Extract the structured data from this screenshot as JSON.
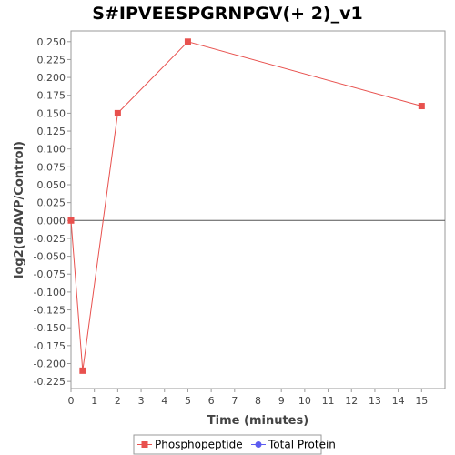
{
  "chart_data": {
    "type": "line",
    "title": "S#IPVEESPGRNPGV(+ 2)_v1",
    "xlabel": "Time (minutes)",
    "ylabel": "log2(dDAVP/Control)",
    "xlim": [
      0,
      16
    ],
    "ylim": [
      -0.235,
      0.265
    ],
    "x_ticks": [
      0,
      1,
      2,
      3,
      4,
      5,
      6,
      7,
      8,
      9,
      10,
      11,
      12,
      13,
      14,
      15
    ],
    "y_ticks": [
      0.25,
      0.225,
      0.2,
      0.175,
      0.15,
      0.125,
      0.1,
      0.075,
      0.05,
      0.025,
      0.0,
      -0.025,
      -0.05,
      -0.075,
      -0.1,
      -0.125,
      -0.15,
      -0.175,
      -0.2,
      -0.225
    ],
    "y_tick_labels": [
      "0.250",
      "0.225",
      "0.200",
      "0.175",
      "0.150",
      "0.125",
      "0.100",
      "0.075",
      "0.050",
      "0.025",
      "0.000",
      "-0.025",
      "-0.050",
      "-0.075",
      "-0.100",
      "-0.125",
      "-0.150",
      "-0.175",
      "-0.200",
      "-0.225"
    ],
    "series": [
      {
        "name": "Phosphopeptide",
        "color": "#e8514e",
        "marker": "square",
        "x": [
          0,
          0.5,
          2,
          5,
          15
        ],
        "y": [
          0.0,
          -0.21,
          0.15,
          0.25,
          0.16
        ]
      },
      {
        "name": "Total Protein",
        "color": "#5c5cf0",
        "marker": "circle",
        "x": [],
        "y": []
      }
    ],
    "grid": false,
    "zero_line": true,
    "legend_position": "bottom-center"
  }
}
